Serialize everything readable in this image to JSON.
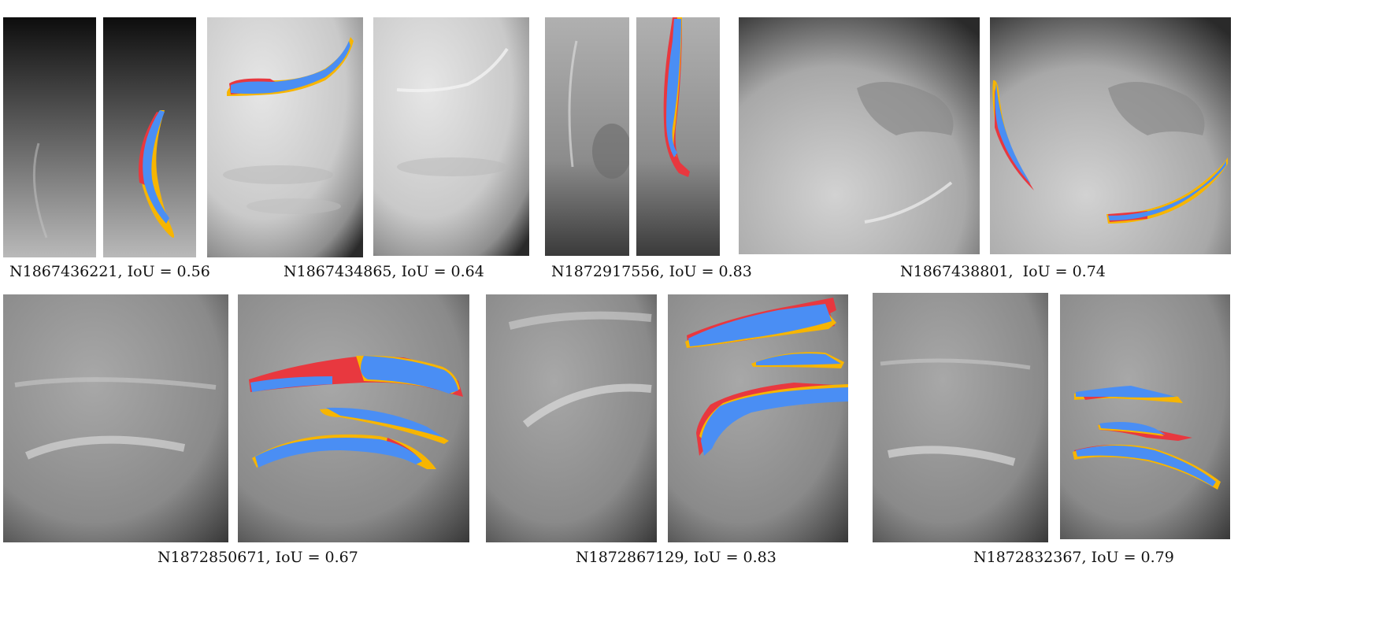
{
  "captions": {
    "n1867436221": "N1867436221, IoU = 0.56",
    "n1867434865": "N1867434865, IoU = 0.64",
    "n1872917556": "N1872917556, IoU = 0.83",
    "n1867438801": "N1867438801,  IoU = 0.74",
    "n1872850671": "N1872850671, IoU = 0.67",
    "n1872867129": "N1872867129, IoU = 0.83",
    "n1872832367": "N1872832367, IoU = 0.79"
  },
  "colors": {
    "overlay_blue": "#4a8ef4",
    "overlay_red": "#e8383f",
    "overlay_yellow": "#f7b500"
  }
}
